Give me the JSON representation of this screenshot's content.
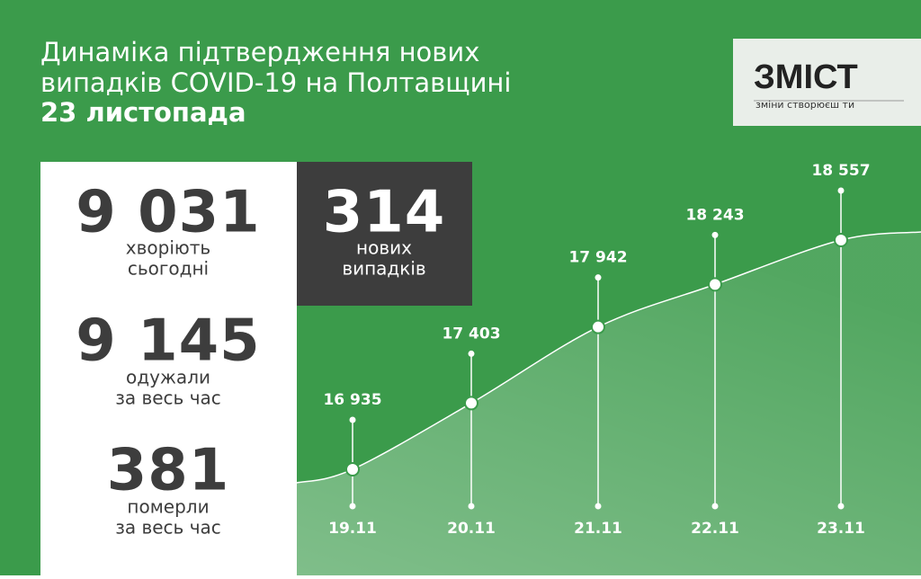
{
  "header": {
    "title_lines": [
      "Динаміка підтвердження нових",
      "випадків COVID-19 на Полтавщині"
    ],
    "date": "23 листопада"
  },
  "logo": {
    "name": "ЗМІСТ",
    "tagline": "зміни створюєш ти"
  },
  "stats": [
    {
      "value": "9 031",
      "label_lines": [
        "хворіють",
        "сьогодні"
      ]
    },
    {
      "value": "9 145",
      "label_lines": [
        "одужали",
        "за весь час"
      ]
    },
    {
      "value": "381",
      "label_lines": [
        "померли",
        "за весь час"
      ]
    }
  ],
  "new_cases": {
    "value": "314",
    "label_lines": [
      "нових",
      "випадків"
    ]
  },
  "chart_data": {
    "type": "line",
    "categories": [
      "19.11",
      "20.11",
      "21.11",
      "22.11",
      "23.11"
    ],
    "values": [
      16935,
      17403,
      17942,
      18243,
      18557
    ],
    "value_labels": [
      "16 935",
      "17 403",
      "17 942",
      "18 243",
      "18 557"
    ],
    "color": "#ffffff"
  }
}
